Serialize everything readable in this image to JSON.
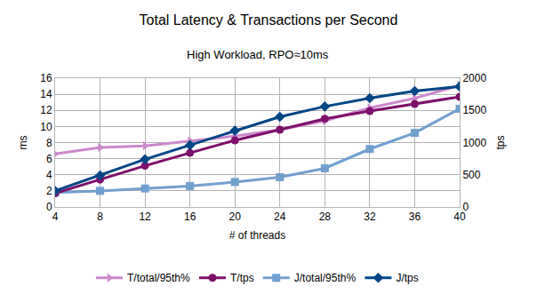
{
  "chart_data": {
    "type": "line",
    "title": "Total Latency & Transactions per Second",
    "subtitle": "High Workload, RPO≈10ms",
    "x_label": "# of threads",
    "y_label": "ms",
    "y2_label": "tps",
    "x": [
      4,
      8,
      12,
      16,
      20,
      24,
      28,
      32,
      36,
      40
    ],
    "xlim": [
      4,
      40
    ],
    "xticks": [
      4,
      8,
      12,
      16,
      20,
      24,
      28,
      32,
      36,
      40
    ],
    "ylim": [
      0,
      16
    ],
    "yticks": [
      0,
      2,
      4,
      6,
      8,
      10,
      12,
      14,
      16
    ],
    "y2lim": [
      0,
      2000
    ],
    "y2ticks": [
      0,
      500,
      1000,
      1500,
      2000
    ],
    "grid": true,
    "legend": "bottom",
    "series": [
      {
        "name": "T/total/95th%",
        "color": "#cc88cc",
        "marker": "triangle-right",
        "line_style": "solid",
        "values": [
          6.6,
          7.4,
          7.6,
          8.2,
          8.8,
          9.6,
          10.7,
          12.3,
          13.5,
          15.1
        ]
      },
      {
        "name": "T/tps",
        "color": "#7e0f6b",
        "marker": "circle",
        "line_style": "solid",
        "axis": "y2",
        "values": [
          212,
          425,
          640,
          840,
          1035,
          1200,
          1370,
          1490,
          1600,
          1710
        ]
      },
      {
        "name": "J/total/95th%",
        "color": "#729fcf",
        "marker": "square",
        "line_style": "solid",
        "values": [
          1.8,
          2.0,
          2.3,
          2.6,
          3.1,
          3.7,
          4.8,
          7.2,
          9.2,
          12.2
        ]
      },
      {
        "name": "J/tps",
        "color": "#004586",
        "marker": "diamond",
        "line_style": "solid",
        "axis": "y2",
        "values": [
          250,
          490,
          740,
          960,
          1185,
          1400,
          1560,
          1690,
          1800,
          1870
        ]
      }
    ]
  }
}
